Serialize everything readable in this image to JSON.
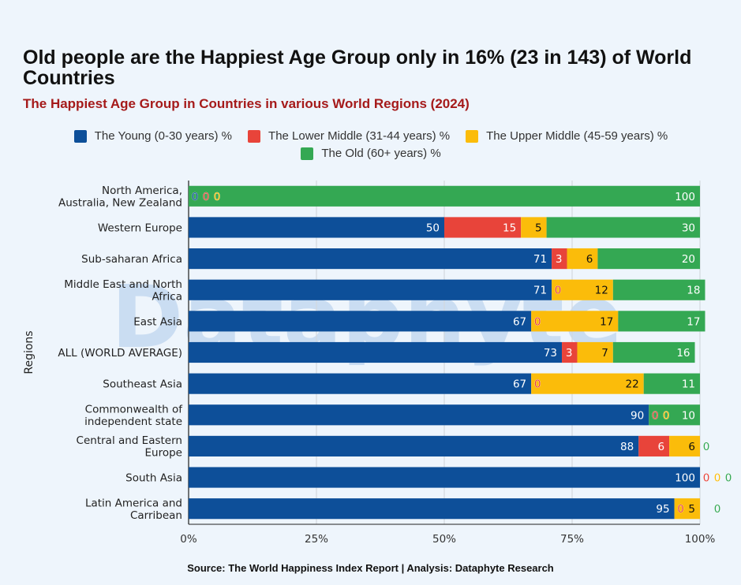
{
  "chart_data": {
    "type": "bar",
    "orientation": "horizontal",
    "stacked": true,
    "title": "Old people are the Happiest Age Group only in 16% (23 in 143) of World Countries",
    "subtitle": "The Happiest Age Group in Countries in various World Regions (2024)",
    "ylabel": "Regions",
    "xlim": [
      0,
      100
    ],
    "x_ticks": [
      "0%",
      "25%",
      "50%",
      "75%",
      "100%"
    ],
    "grid": true,
    "legend_position": "top",
    "source": "Source: The World Happiness Index Report | Analysis: Dataphyte Research",
    "watermark": "Dataphyte",
    "categories": [
      "North America, Australia, New Zealand",
      "Western Europe",
      "Sub-saharan Africa",
      "Middle East and North Africa",
      "East Asia",
      "ALL (WORLD AVERAGE)",
      "Southeast Asia",
      "Commonwealth of independent state",
      "Central and Eastern Europe",
      "South Asia",
      "Latin America and Carribean"
    ],
    "series": [
      {
        "name": "The Young (0-30 years) %",
        "color": "#0d4f99",
        "values": [
          0,
          50,
          71,
          71,
          67,
          73,
          67,
          90,
          88,
          100,
          95
        ]
      },
      {
        "name": "The Lower Middle (31-44 years) %",
        "color": "#e8443a",
        "values": [
          0,
          15,
          3,
          0,
          0,
          3,
          0,
          0,
          6,
          0,
          0
        ]
      },
      {
        "name": "The Upper Middle (45-59 years) %",
        "color": "#fbbc0a",
        "values": [
          0,
          5,
          6,
          12,
          17,
          7,
          22,
          0,
          6,
          0,
          5
        ]
      },
      {
        "name": "The Old (60+ years) %",
        "color": "#34a853",
        "values": [
          100,
          30,
          20,
          18,
          17,
          16,
          11,
          10,
          0,
          0,
          0
        ]
      }
    ]
  }
}
